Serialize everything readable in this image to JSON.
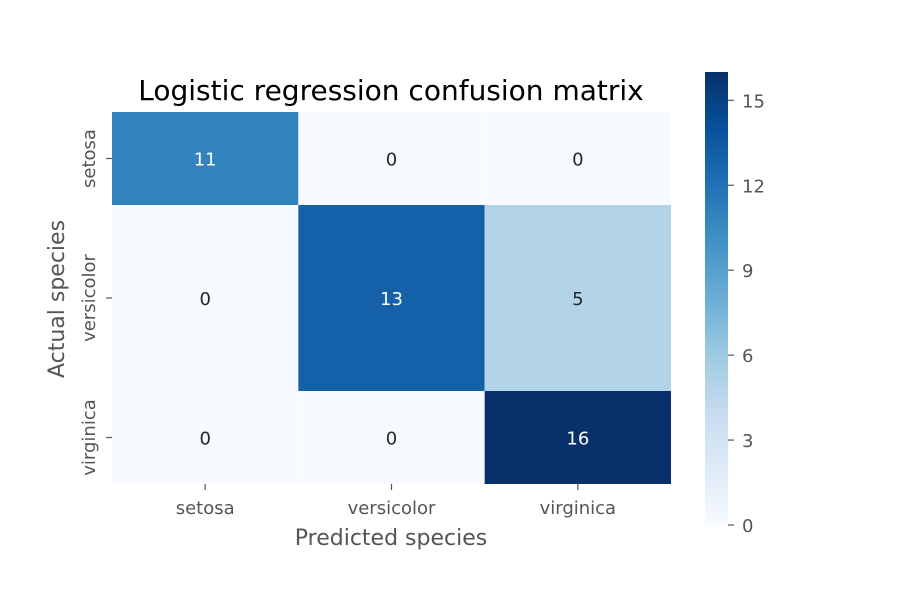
{
  "chart_data": {
    "type": "heatmap",
    "title": "Logistic regression confusion matrix",
    "xlabel": "Predicted species",
    "ylabel": "Actual species",
    "x_categories": [
      "setosa",
      "versicolor",
      "virginica"
    ],
    "y_categories": [
      "setosa",
      "versicolor",
      "virginica"
    ],
    "values": [
      [
        11,
        0,
        0
      ],
      [
        0,
        13,
        5
      ],
      [
        0,
        0,
        16
      ]
    ],
    "colormap": "Blues",
    "colorbar": {
      "min": 0,
      "max": 16,
      "ticks": [
        0,
        3,
        6,
        9,
        12,
        15
      ]
    },
    "colors": {
      "low": "#f7fbff",
      "high": "#08306b"
    }
  }
}
